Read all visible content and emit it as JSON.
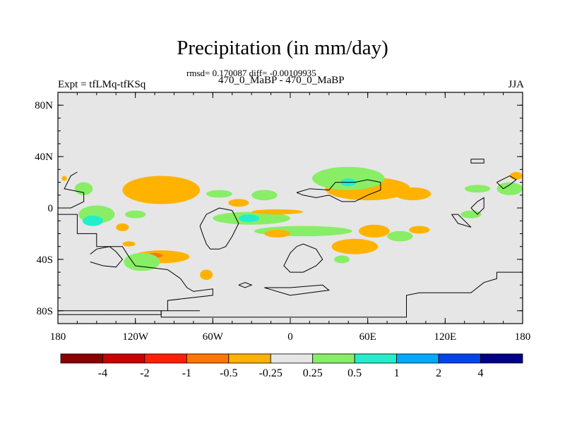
{
  "chart_data": {
    "type": "contour-map",
    "title": "Precipitation (in mm/day)",
    "stats": "rmsd= 0.170087 diff= -0.00109935",
    "subtitle": "470_0_MaBP - 470_0_MaBP",
    "left_string": "Expt = tfLMq-tfKSq",
    "right_string": "JJA",
    "x_ticks": [
      {
        "lon": -180,
        "label": "180"
      },
      {
        "lon": -120,
        "label": "120W"
      },
      {
        "lon": -60,
        "label": "60W"
      },
      {
        "lon": 0,
        "label": "0"
      },
      {
        "lon": 60,
        "label": "60E"
      },
      {
        "lon": 120,
        "label": "120E"
      },
      {
        "lon": 180,
        "label": "180"
      }
    ],
    "y_ticks": [
      {
        "lat": 80,
        "label": "80N"
      },
      {
        "lat": 40,
        "label": "40N"
      },
      {
        "lat": 0,
        "label": "0"
      },
      {
        "lat": -40,
        "label": "40S"
      },
      {
        "lat": -80,
        "label": "80S"
      }
    ],
    "xlim": [
      -180,
      180
    ],
    "ylim": [
      -90,
      90
    ],
    "colorbar": {
      "colors": [
        "#8b0000",
        "#cc0000",
        "#ff2200",
        "#ff7700",
        "#ffb300",
        "#e6e6e6",
        "#88ee66",
        "#22eecc",
        "#00aaff",
        "#0044ee",
        "#000088"
      ],
      "levels": [
        "-4",
        "-2",
        "-1",
        "-0.5",
        "-0.25",
        "0.25",
        "0.5",
        "1",
        "2",
        "4"
      ]
    },
    "regions": [
      {
        "category": "-0.5",
        "lon": -100,
        "lat": 13,
        "rx": 22,
        "ry": 7
      },
      {
        "category": "-0.25",
        "lon": -100,
        "lat": 14,
        "rx": 30,
        "ry": 11
      },
      {
        "category": "0.25",
        "lon": -55,
        "lat": 11,
        "rx": 10,
        "ry": 3
      },
      {
        "category": "-0.25",
        "lon": -40,
        "lat": 4,
        "rx": 8,
        "ry": 3
      },
      {
        "category": "-0.5",
        "lon": 60,
        "lat": 14,
        "rx": 23,
        "ry": 5
      },
      {
        "category": "-0.25",
        "lon": 60,
        "lat": 15,
        "rx": 33,
        "ry": 9
      },
      {
        "category": "0.25",
        "lon": 45,
        "lat": 23,
        "rx": 28,
        "ry": 9
      },
      {
        "category": "0.5",
        "lon": 45,
        "lat": 20,
        "rx": 6,
        "ry": 3
      },
      {
        "category": "-0.25",
        "lon": 95,
        "lat": 11,
        "rx": 14,
        "ry": 5
      },
      {
        "category": "0.25",
        "lon": -20,
        "lat": 10,
        "rx": 10,
        "ry": 4
      },
      {
        "category": "0.25",
        "lon": -160,
        "lat": 15,
        "rx": 7,
        "ry": 5
      },
      {
        "category": "0.25",
        "lon": -150,
        "lat": -5,
        "rx": 14,
        "ry": 7
      },
      {
        "category": "0.5",
        "lon": -153,
        "lat": -10,
        "rx": 8,
        "ry": 4
      },
      {
        "category": "0.25",
        "lon": -120,
        "lat": -5,
        "rx": 8,
        "ry": 3
      },
      {
        "category": "-0.25",
        "lon": -130,
        "lat": -15,
        "rx": 5,
        "ry": 3
      },
      {
        "category": "0.25",
        "lon": -30,
        "lat": -8,
        "rx": 30,
        "ry": 5
      },
      {
        "category": "0.5",
        "lon": -32,
        "lat": -8,
        "rx": 8,
        "ry": 3
      },
      {
        "category": "-0.25",
        "lon": -10,
        "lat": -3,
        "rx": 20,
        "ry": 2
      },
      {
        "category": "0.25",
        "lon": 10,
        "lat": -18,
        "rx": 38,
        "ry": 4
      },
      {
        "category": "-0.25",
        "lon": -10,
        "lat": -20,
        "rx": 10,
        "ry": 3
      },
      {
        "category": "-0.25",
        "lon": 65,
        "lat": -18,
        "rx": 12,
        "ry": 5
      },
      {
        "category": "0.25",
        "lon": 85,
        "lat": -22,
        "rx": 10,
        "ry": 4
      },
      {
        "category": "-0.25",
        "lon": 100,
        "lat": -17,
        "rx": 8,
        "ry": 3
      },
      {
        "category": "0.25",
        "lon": 140,
        "lat": -5,
        "rx": 8,
        "ry": 3
      },
      {
        "category": "0.25",
        "lon": 145,
        "lat": 15,
        "rx": 10,
        "ry": 3
      },
      {
        "category": "-0.25",
        "lon": 175,
        "lat": 25,
        "rx": 5,
        "ry": 3
      },
      {
        "category": "0.25",
        "lon": 170,
        "lat": 15,
        "rx": 10,
        "ry": 5
      },
      {
        "category": "-0.25",
        "lon": -100,
        "lat": -38,
        "rx": 22,
        "ry": 5
      },
      {
        "category": "-0.5",
        "lon": -105,
        "lat": -37,
        "rx": 6,
        "ry": 2
      },
      {
        "category": "-0.25",
        "lon": -125,
        "lat": -28,
        "rx": 5,
        "ry": 2
      },
      {
        "category": "0.25",
        "lon": -115,
        "lat": -42,
        "rx": 14,
        "ry": 7
      },
      {
        "category": "-0.25",
        "lon": -65,
        "lat": -52,
        "rx": 5,
        "ry": 4
      },
      {
        "category": "-0.25",
        "lon": 50,
        "lat": -30,
        "rx": 18,
        "ry": 6
      },
      {
        "category": "0.25",
        "lon": 40,
        "lat": -40,
        "rx": 6,
        "ry": 3
      },
      {
        "category": "-0.25",
        "lon": -175,
        "lat": 23,
        "rx": 2,
        "ry": 2
      }
    ],
    "coastlines": [
      "-180,-5 -165,-5 -165,-20 -150,-20 -150,-30 -130,-30 -125,-38 -120,-45 -95,-48 -85,-55 -80,-62 -75,-65 -60,-63 -60,-68 -95,-72 -95,-80 -70,-80 -100,-80 -100,-83 -180,-83",
      "-180,-80 -100,-80 -100,-85 0,-85 90,-85 90,-68 100,-66 140,-66 150,-58 160,-55 160,-50 180,-50",
      "-155,-36 -150,-32 -140,-30 -135,-34 -130,-40 -135,-46 -145,-45 -155,-42",
      "-70,-14 -65,-5 -55,0 -45,-2 -40,-12 -45,-22 -50,-30 -55,-32 -62,-32 -65,-28 -68,-20 -70,-14",
      "-165,28 -170,25 -175,15 -160,12 -160,5 -170,0 -180,0",
      "5,12 15,15 30,14 35,20 50,20 60,22 70,20 70,14 60,10 50,5 40,5 30,10 20,8 10,10 5,12",
      "5,-30 0,-35 -5,-45 0,-50 10,-50 20,-45 25,-40 20,-32 10,-28 5,-30",
      "125,-5 130,-12 140,-15 135,-10 130,-5 125,-5",
      "140,38 150,38 150,35 140,35 140,38",
      "160,20 170,25 175,22 170,18 165,15 160,20",
      "140,0 145,5 150,8 150,0 145,-5 140,0",
      "-40,-60 -35,-62 -30,-60 -35,-58 -40,-60",
      "-20,-62 0,-68 30,-64 25,-60 0,-62 -20,-62"
    ]
  }
}
